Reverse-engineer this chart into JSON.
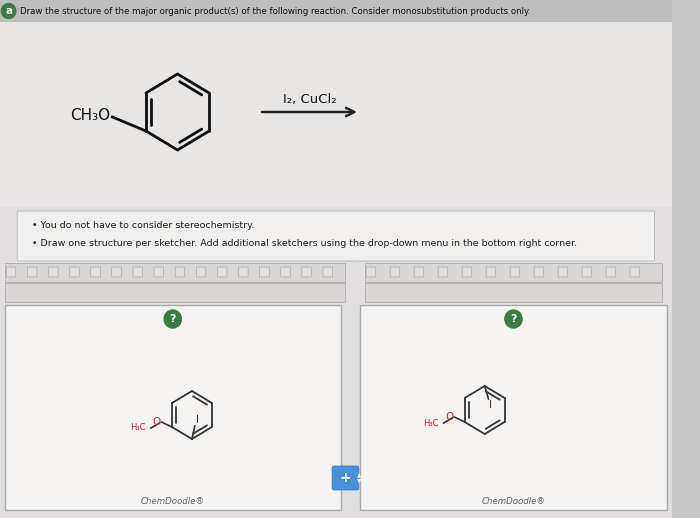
{
  "bg_color": "#c8c8c8",
  "page_bg": "#e0dede",
  "header_bg": "#dcdcdc",
  "reaction_bg": "#e8e6e4",
  "instr_bg": "#f0efee",
  "toolbar_bg": "#d8d5d2",
  "panel_bg": "#f5f4f2",
  "white": "#ffffff",
  "header_text": "Draw the structure of the major organic product(s) of the following reaction. Consider monosubstitution products only.",
  "bullet1": "You do not have to consider stereochemistry.",
  "bullet2": "Draw one structure per sketcher. Add additional sketchers using the drop-down menu in the bottom right corner.",
  "reagent_top": "I₂, CuCl₂",
  "chemdoodle_label": "ChemDoodle®",
  "green_circle_color": "#3a7d44",
  "toolbar_icon_color": "#888888",
  "label_color_o": "#cc2222",
  "structure_color": "#333333",
  "arrow_color": "#222222",
  "plus_bg": "#4a90d9",
  "header_row_bg": "#bebebe",
  "header_text_color": "#111111",
  "instr_border": "#bbbbbb",
  "panel_border": "#aaaaaa",
  "chemdoodle_text_color": "#666666"
}
